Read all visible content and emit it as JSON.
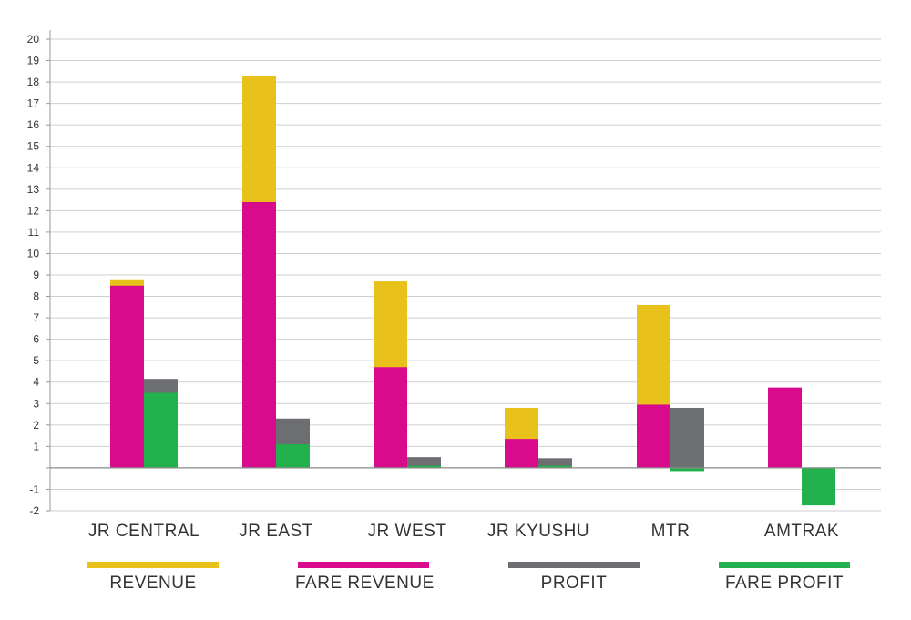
{
  "chart_data": {
    "type": "bar",
    "categories": [
      "JR CENTRAL",
      "JR EAST",
      "JR WEST",
      "JR KYUSHU",
      "MTR",
      "AMTRAK"
    ],
    "series": [
      {
        "name": "REVENUE",
        "color": "#e8c21b",
        "values": [
          8.8,
          18.3,
          8.7,
          2.8,
          7.6,
          null
        ]
      },
      {
        "name": "FARE REVENUE",
        "color": "#d80b8c",
        "values": [
          8.5,
          12.4,
          4.7,
          1.35,
          2.95,
          3.75
        ]
      },
      {
        "name": "PROFIT",
        "color": "#6d6e71",
        "values": [
          4.15,
          2.3,
          0.5,
          0.45,
          2.8,
          null
        ]
      },
      {
        "name": "FARE PROFIT",
        "color": "#22b14c",
        "values": [
          3.5,
          1.1,
          0.1,
          0.1,
          -0.15,
          -1.75
        ]
      }
    ],
    "y_ticks": [
      "-2",
      "-1",
      "",
      "1",
      "2",
      "3",
      "4",
      "5",
      "6",
      "7",
      "8",
      "9",
      "10",
      "11",
      "12",
      "13",
      "14",
      "15",
      "16",
      "17",
      "18",
      "19",
      "20"
    ],
    "ylim": [
      -2,
      20
    ],
    "grid": true,
    "legend_position": "bottom",
    "title": "",
    "xlabel": "",
    "ylabel": ""
  },
  "legend": [
    {
      "label": "REVENUE",
      "color": "#e8c21b"
    },
    {
      "label": "FARE REVENUE",
      "color": "#d80b8c"
    },
    {
      "label": "PROFIT",
      "color": "#6d6e71"
    },
    {
      "label": "FARE PROFIT",
      "color": "#22b14c"
    }
  ]
}
